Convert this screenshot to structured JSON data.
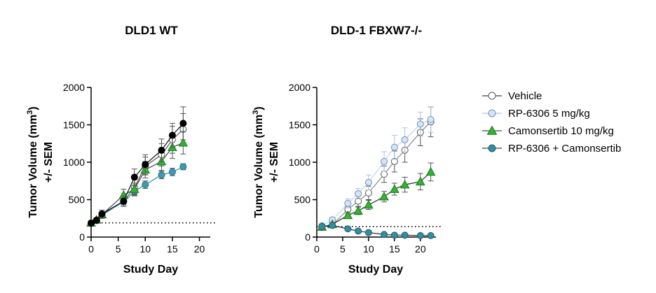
{
  "chart_data": [
    {
      "type": "line",
      "title": "DLD1 WT",
      "xlabel": "Study Day",
      "ylabel_line1": "Tumor Volume (mm",
      "ylabel_sup": "3",
      "ylabel_close": ")",
      "ylabel_line2": "+/- SEM",
      "xlim": [
        0,
        22
      ],
      "ylim": [
        0,
        2000
      ],
      "xticks": [
        0,
        5,
        10,
        15,
        20
      ],
      "yticks": [
        0,
        500,
        1000,
        1500,
        2000
      ],
      "xtick_labels": [
        "0",
        "5",
        "10",
        "15",
        "20"
      ],
      "ytick_labels": [
        "0",
        "500",
        "1000",
        "1500",
        "2000"
      ],
      "baseline": {
        "y": 190,
        "x_start": 0,
        "x_end": 22,
        "style": "dotted"
      },
      "series": [
        {
          "name": "Vehicle",
          "x": [
            0,
            1,
            2,
            6,
            8,
            10,
            13,
            15,
            17
          ],
          "y": [
            190,
            225,
            290,
            480,
            660,
            950,
            1100,
            1300,
            1440
          ],
          "err": [
            20,
            25,
            40,
            70,
            110,
            120,
            150,
            180,
            210
          ]
        },
        {
          "name": "RP-6306 5 mg/kg",
          "x": [
            0,
            1,
            2,
            6,
            8,
            10,
            13,
            15,
            17
          ],
          "y": [
            185,
            220,
            300,
            470,
            610,
            700,
            830,
            870,
            940
          ],
          "err": [
            20,
            20,
            30,
            40,
            40,
            50,
            50,
            50,
            40
          ]
        },
        {
          "name": "Camonsertib 10 mg/kg",
          "x": [
            0,
            1,
            2,
            6,
            8,
            10,
            13,
            15,
            17
          ],
          "y": [
            190,
            230,
            300,
            560,
            640,
            900,
            1010,
            1200,
            1260
          ],
          "err": [
            20,
            25,
            40,
            80,
            80,
            110,
            120,
            150,
            150
          ]
        },
        {
          "name": "RP-6306 + Camonsertib",
          "x": [
            0,
            1,
            2,
            6,
            8,
            10,
            13,
            15,
            17
          ],
          "y": [
            185,
            225,
            310,
            480,
            800,
            970,
            1160,
            1360,
            1520
          ],
          "err": [
            20,
            25,
            50,
            70,
            110,
            130,
            150,
            160,
            220
          ]
        }
      ]
    },
    {
      "type": "line",
      "title": "DLD-1 FBXW7-/-",
      "xlabel": "Study Day",
      "ylabel_line1": "Tumor Volume (mm",
      "ylabel_sup": "3",
      "ylabel_close": ")",
      "ylabel_line2": "+/- SEM",
      "xlim": [
        0,
        23
      ],
      "ylim": [
        0,
        2000
      ],
      "xticks": [
        0,
        5,
        10,
        15,
        20
      ],
      "yticks": [
        0,
        500,
        1000,
        1500,
        2000
      ],
      "xtick_labels": [
        "0",
        "5",
        "10",
        "15",
        "20"
      ],
      "ytick_labels": [
        "0",
        "500",
        "1000",
        "1500",
        "2000"
      ],
      "baseline": {
        "y": 140,
        "x_start": 0,
        "x_end": 23,
        "style": "dotted"
      },
      "series": [
        {
          "name": "Vehicle",
          "x": [
            1,
            3,
            6,
            8,
            10,
            13,
            15,
            17,
            20,
            22
          ],
          "y": [
            130,
            160,
            370,
            480,
            590,
            840,
            1010,
            1160,
            1400,
            1540
          ],
          "err": [
            20,
            25,
            60,
            70,
            90,
            110,
            140,
            160,
            180,
            200
          ]
        },
        {
          "name": "RP-6306 5 mg/kg",
          "x": [
            1,
            3,
            6,
            8,
            10,
            13,
            15,
            17,
            20,
            22
          ],
          "y": [
            150,
            230,
            450,
            580,
            730,
            1010,
            1200,
            1300,
            1510,
            1570
          ],
          "err": [
            20,
            30,
            60,
            70,
            100,
            130,
            160,
            160,
            160,
            170
          ]
        },
        {
          "name": "Camonsertib 10 mg/kg",
          "x": [
            1,
            3,
            6,
            8,
            10,
            13,
            15,
            17,
            20,
            22
          ],
          "y": [
            135,
            170,
            290,
            350,
            430,
            540,
            640,
            700,
            740,
            870
          ],
          "err": [
            15,
            20,
            40,
            50,
            60,
            70,
            80,
            100,
            110,
            120
          ]
        },
        {
          "name": "RP-6306 + Camonsertib",
          "x": [
            1,
            3,
            6,
            8,
            10,
            13,
            15,
            17,
            20,
            22
          ],
          "y": [
            140,
            155,
            110,
            80,
            60,
            35,
            25,
            25,
            20,
            20
          ],
          "err": [
            15,
            20,
            15,
            10,
            10,
            8,
            5,
            5,
            5,
            5
          ]
        }
      ]
    }
  ],
  "styles": [
    {
      "name": "Vehicle",
      "line": "#8a8a8a",
      "fill": "#ffffff",
      "stroke": "#555555",
      "marker": "circle"
    },
    {
      "name": "RP-6306 5 mg/kg",
      "line": "#c0d6ef",
      "fill": "#d7e4f5",
      "stroke": "#6d8fc0",
      "marker": "circle"
    },
    {
      "name": "Camonsertib 10 mg/kg",
      "line": "#2b2b2b",
      "fill": "#33b233",
      "stroke": "#1a7a1a",
      "marker": "triangle"
    },
    {
      "name": "RP-6306 + Camonsertib",
      "line": "#2b2b2b",
      "fill": "#2f8fa0",
      "stroke": "#1f5f6a",
      "marker": "circle"
    }
  ],
  "wt_styles": [
    {
      "name": "Vehicle",
      "line": "#555555",
      "fill": "#ffffff",
      "stroke": "#555555",
      "marker": "circle"
    },
    {
      "name": "RP-6306 5 mg/kg",
      "line": "#2f8fa0",
      "fill": "#3a9cb2",
      "stroke": "#22707f",
      "marker": "circle"
    },
    {
      "name": "Camonsertib 10 mg/kg",
      "line": "#444444",
      "fill": "#33b233",
      "stroke": "#1a7a1a",
      "marker": "triangle"
    },
    {
      "name": "RP-6306 + Camonsertib",
      "line": "#111111",
      "fill": "#000000",
      "stroke": "#000000",
      "marker": "circle"
    }
  ],
  "legend": {
    "position": "right",
    "items": [
      {
        "label": "Vehicle"
      },
      {
        "label": "RP-6306 5 mg/kg"
      },
      {
        "label": "Camonsertib 10 mg/kg"
      },
      {
        "label": "RP-6306 + Camonsertib"
      }
    ]
  }
}
